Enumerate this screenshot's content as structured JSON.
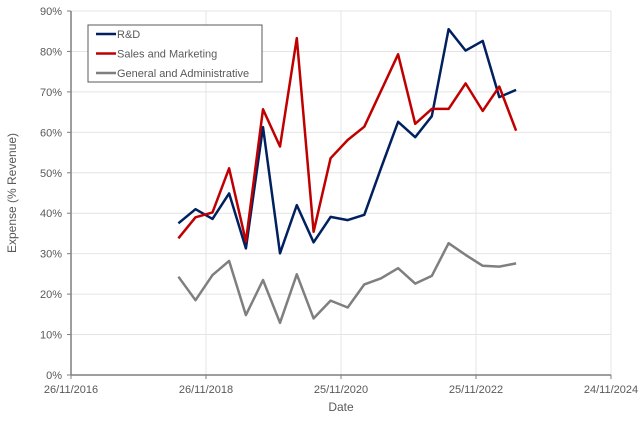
{
  "chart_data": {
    "type": "line",
    "title": "",
    "xlabel": "Date",
    "ylabel": "Expense (% Revenue)",
    "xlim": [
      "2016-11-26",
      "2024-11-24"
    ],
    "ylim": [
      0,
      90
    ],
    "x_ticks": [
      "26/11/2016",
      "26/11/2018",
      "25/11/2020",
      "25/11/2022",
      "24/11/2024"
    ],
    "x_tick_dates": [
      "2016-11-26",
      "2018-11-26",
      "2020-11-25",
      "2022-11-25",
      "2024-11-24"
    ],
    "y_ticks": [
      0,
      10,
      20,
      30,
      40,
      50,
      60,
      70,
      80,
      90
    ],
    "y_tick_labels": [
      "0%",
      "10%",
      "20%",
      "30%",
      "40%",
      "50%",
      "60%",
      "70%",
      "80%",
      "90%"
    ],
    "grid": true,
    "legend_placement": "top-left",
    "x": [
      "2018-06-30",
      "2018-09-30",
      "2018-12-31",
      "2019-03-31",
      "2019-06-30",
      "2019-09-30",
      "2019-12-31",
      "2020-03-31",
      "2020-06-30",
      "2020-09-30",
      "2020-12-31",
      "2021-03-31",
      "2021-06-30",
      "2021-09-30",
      "2021-12-31",
      "2022-03-31",
      "2022-06-30",
      "2022-09-30",
      "2022-12-31",
      "2023-03-31",
      "2023-06-30"
    ],
    "series": [
      {
        "name": "R&D",
        "color": "#002060",
        "values": [
          37.5,
          41.0,
          38.6,
          44.9,
          31.3,
          61.3,
          30.1,
          42.0,
          32.8,
          39.1,
          38.3,
          39.6,
          51.2,
          62.6,
          58.8,
          64.0,
          85.5,
          80.2,
          82.6,
          68.7,
          70.5
        ]
      },
      {
        "name": "Sales and Marketing",
        "color": "#C00000",
        "values": [
          33.8,
          39.0,
          40.2,
          51.1,
          33.0,
          65.7,
          56.5,
          83.3,
          35.4,
          53.6,
          58.1,
          61.4,
          70.3,
          79.3,
          62.1,
          65.8,
          65.8,
          72.1,
          65.3,
          71.3,
          60.4
        ]
      },
      {
        "name": "General and Administrative",
        "color": "#7F7F7F",
        "values": [
          24.3,
          18.5,
          24.7,
          28.2,
          14.8,
          23.5,
          12.9,
          24.9,
          14.0,
          18.4,
          16.7,
          22.4,
          23.9,
          26.4,
          22.6,
          24.5,
          32.6,
          29.7,
          27.0,
          26.8,
          27.6
        ]
      }
    ]
  }
}
